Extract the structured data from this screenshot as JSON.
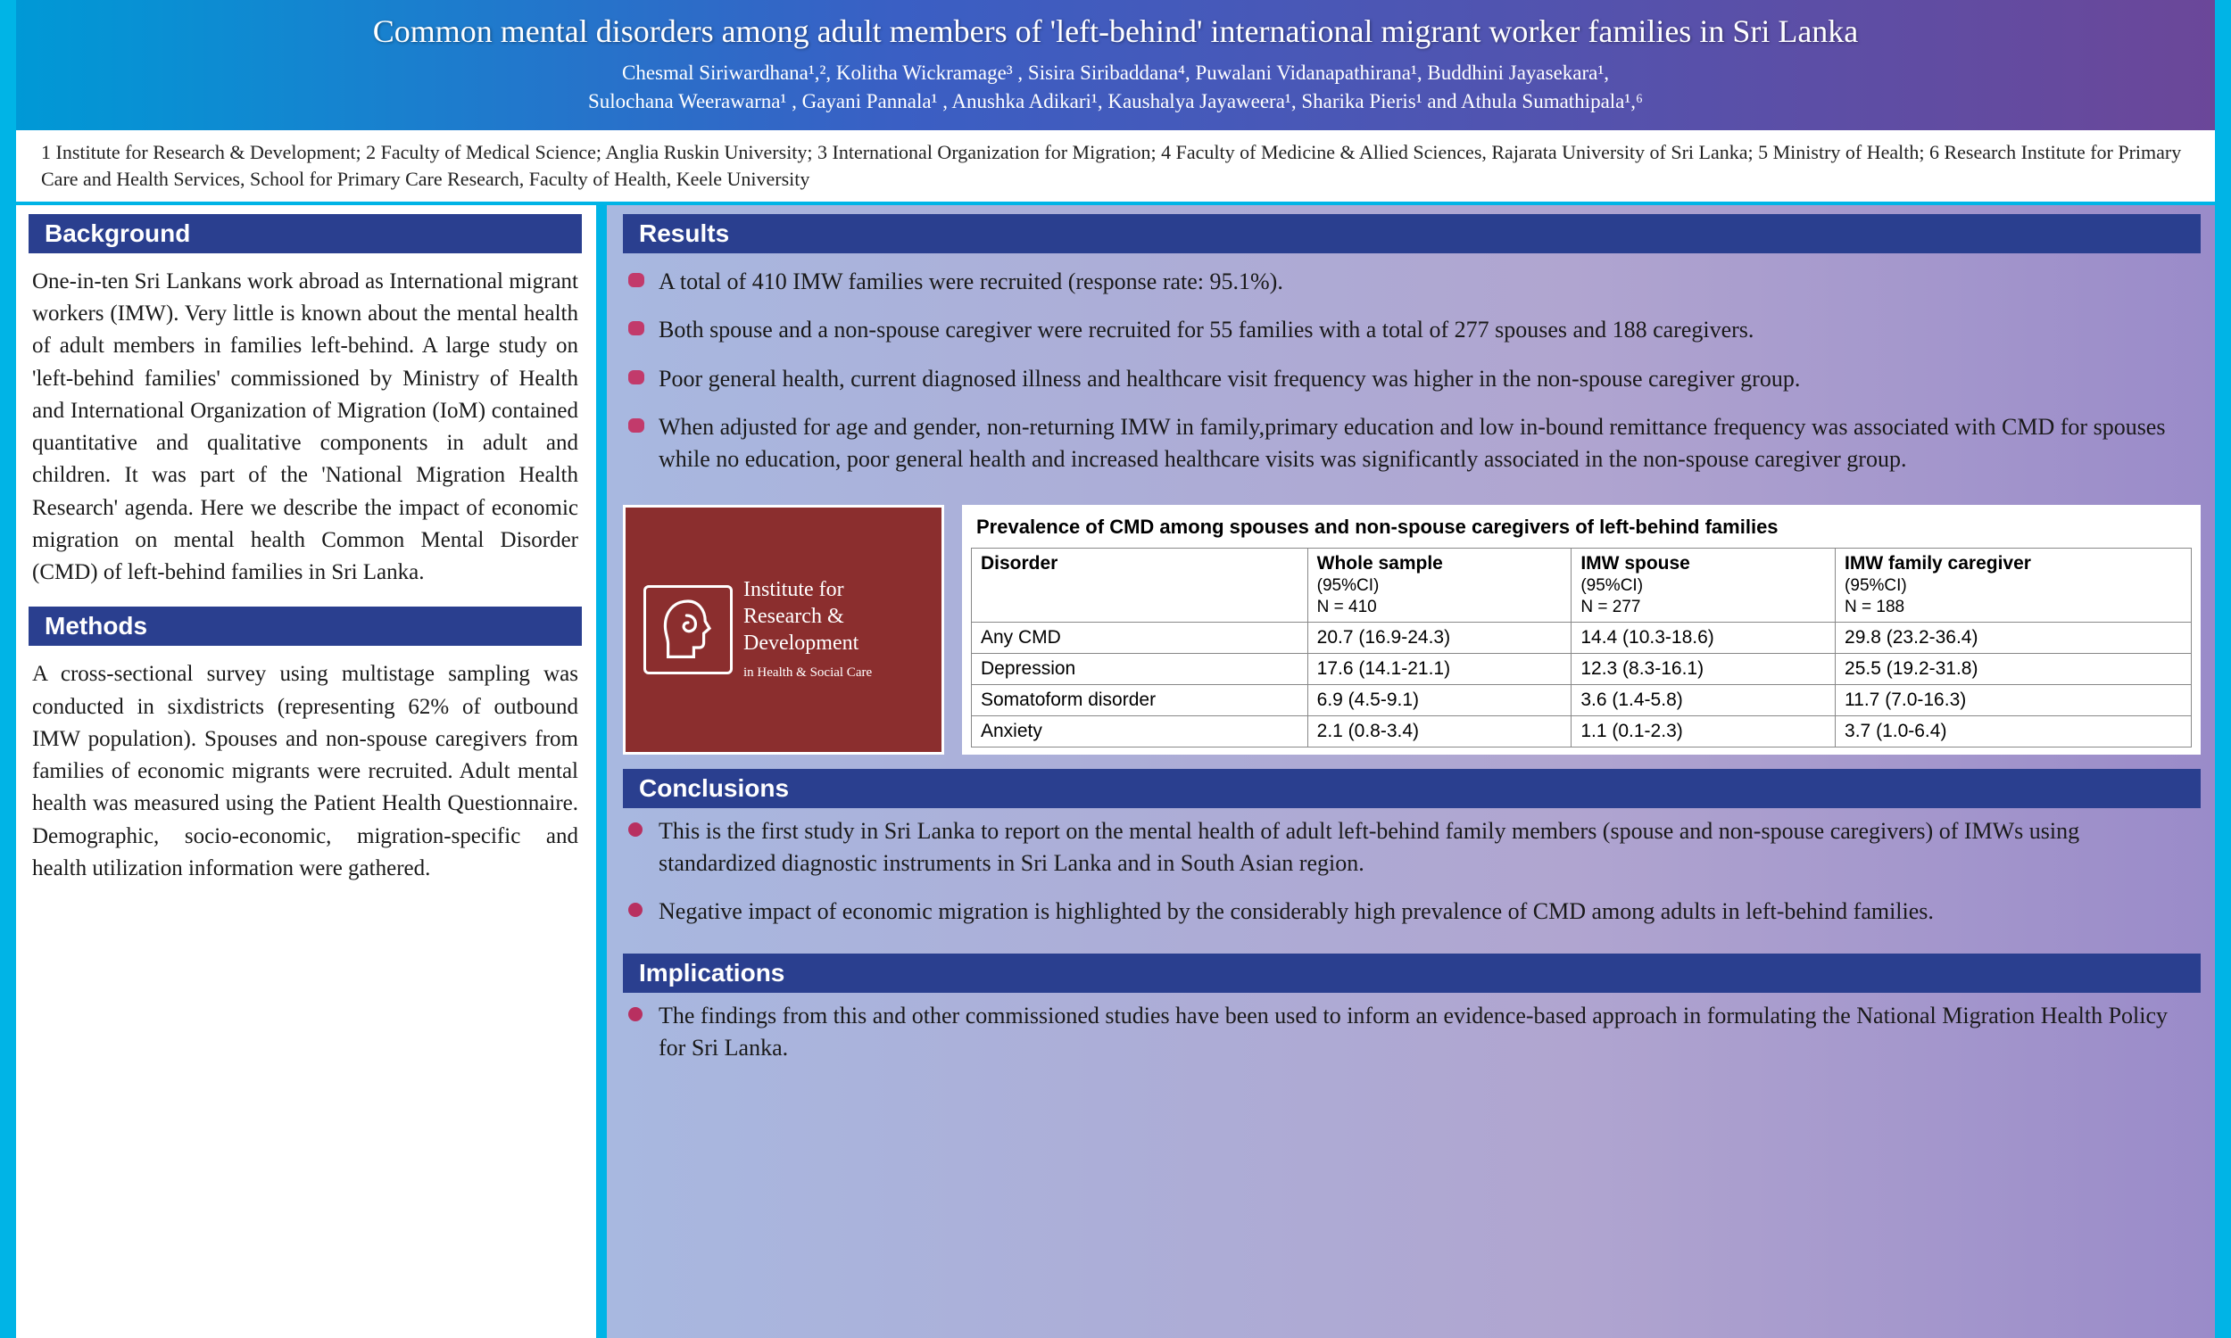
{
  "header": {
    "title": "Common mental disorders among adult members of 'left-behind' international migrant worker families in Sri Lanka",
    "authors_line1": "Chesmal Siriwardhana¹,², Kolitha Wickramage³ , Sisira Siribaddana⁴, Puwalani Vidanapathirana¹, Buddhini Jayasekara¹,",
    "authors_line2": "Sulochana Weerawarna¹ , Gayani Pannala¹ , Anushka Adikari¹, Kaushalya Jayaweera¹, Sharika Pieris¹ and Athula Sumathipala¹,⁶",
    "affiliations": "1 Institute for Research & Development; 2 Faculty of Medical Science; Anglia Ruskin University; 3 International Organization for Migration; 4 Faculty of Medicine & Allied Sciences, Rajarata University of Sri Lanka; 5 Ministry of Health; 6 Research Institute for Primary Care and Health Services, School for Primary Care Research, Faculty of Health, Keele University"
  },
  "sections": {
    "background": {
      "heading": "Background",
      "body": "One-in-ten Sri Lankans work abroad as International migrant workers (IMW). Very little is known about the mental health of adult members in families left-behind. A large study on 'left-behind families' commissioned by Ministry of Health and International Organization of Migration (IoM) contained quantitative and qualitative components in adult and children. It was part of the 'National Migration Health Research' agenda. Here we describe the impact of economic migration on mental health Common Mental Disorder (CMD) of left-behind families in Sri Lanka."
    },
    "methods": {
      "heading": "Methods",
      "body": "A cross-sectional survey using multistage sampling was conducted in sixdistricts (representing 62% of outbound IMW population). Spouses and non-spouse caregivers from families of economic migrants were recruited. Adult mental health was measured using the Patient Health Questionnaire. Demographic, socio-economic, migration-specific and health utilization information were gathered."
    },
    "results": {
      "heading": "Results",
      "bullets": [
        "A total of 410 IMW families were recruited (response rate: 95.1%).",
        "Both spouse and a non-spouse caregiver were recruited for 55  families with a total of 277 spouses and 188 caregivers.",
        "Poor general health, current diagnosed illness and healthcare visit frequency was higher in the non-spouse caregiver group.",
        "When adjusted for age and gender, non-returning IMW in family,primary education and low in-bound remittance frequency was associated with CMD for spouses while no education, poor general health and increased healthcare visits was significantly associated in the non-spouse caregiver group."
      ]
    },
    "conclusions": {
      "heading": "Conclusions",
      "bullets": [
        "This is the first study in Sri Lanka to report on the mental health of adult left-behind family members (spouse and non-spouse caregivers) of IMWs using standardized diagnostic instruments in Sri Lanka and in South Asian region.",
        "Negative impact of economic migration is highlighted by the considerably high prevalence of CMD among adults in left-behind families."
      ]
    },
    "implications": {
      "heading": "Implications",
      "bullets": [
        "The findings from this and other commissioned studies have been used to inform an evidence-based approach in formulating the National Migration Health Policy for Sri Lanka."
      ]
    }
  },
  "logo": {
    "line1": "Institute for",
    "line2": "Research &",
    "line3": "Development",
    "line4": "in Health & Social Care"
  },
  "table": {
    "caption": "Prevalence of CMD among spouses and non-spouse caregivers of left-behind families",
    "columns": [
      {
        "head": "Disorder",
        "sub": ""
      },
      {
        "head": "Whole sample",
        "sub": "(95%CI)\nN = 410"
      },
      {
        "head": "IMW spouse",
        "sub": "(95%CI)\nN = 277"
      },
      {
        "head": "IMW family caregiver",
        "sub": "(95%CI)\nN = 188"
      }
    ],
    "rows": [
      [
        "Any CMD",
        "20.7 (16.9-24.3)",
        "14.4 (10.3-18.6)",
        "29.8 (23.2-36.4)"
      ],
      [
        "Depression",
        "17.6 (14.1-21.1)",
        "12.3 (8.3-16.1)",
        "25.5 (19.2-31.8)"
      ],
      [
        "Somatoform disorder",
        "6.9 (4.5-9.1)",
        "3.6 (1.4-5.8)",
        "11.7 (7.0-16.3)"
      ],
      [
        "Anxiety",
        "2.1 (0.8-3.4)",
        "1.1 (0.1-2.3)",
        "3.7 (1.0-6.4)"
      ]
    ]
  },
  "styling": {
    "title_bg_gradient": [
      "#0099d6",
      "#3a5fc4",
      "#6b4799"
    ],
    "border_color": "#00b4e6",
    "section_header_bg": "#2a3f8f",
    "section_header_fg": "#ffffff",
    "left_bg": "#ffffff",
    "right_bg_gradient": [
      "#a8b8e0",
      "#b0a5d0",
      "#9a8bc9"
    ],
    "bullet_color": "#c23a6b",
    "logo_bg": "#8b2e2e",
    "title_fontsize": 36,
    "author_fontsize": 23,
    "body_fontsize": 25,
    "table_fontsize": 21
  }
}
